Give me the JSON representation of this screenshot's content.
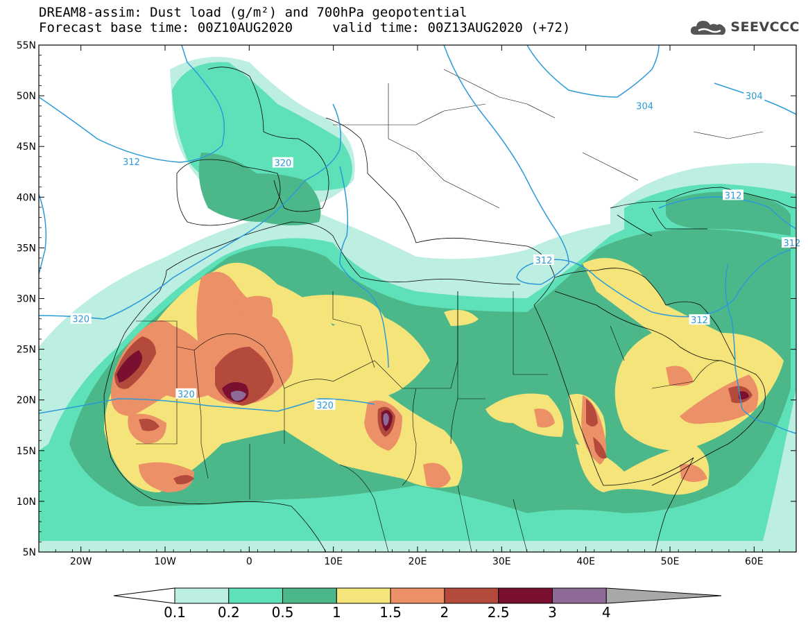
{
  "title": {
    "line1": "DREAM8-assim: Dust load (g/m²) and 700hPa geopotential",
    "line2": "Forecast base time: 00Z10AUG2020     valid time: 00Z13AUG2020 (+72)"
  },
  "logo": {
    "text": "SEEVCCC",
    "icon": "cloud-logo-icon"
  },
  "axes": {
    "lat_labels": [
      "55N",
      "50N",
      "45N",
      "40N",
      "35N",
      "30N",
      "25N",
      "20N",
      "15N",
      "10N",
      "5N"
    ],
    "lat_values": [
      55,
      50,
      45,
      40,
      35,
      30,
      25,
      20,
      15,
      10,
      5
    ],
    "lon_labels": [
      "20W",
      "10W",
      "0",
      "10E",
      "20E",
      "30E",
      "40E",
      "50E",
      "60E"
    ],
    "lon_values": [
      -20,
      -10,
      0,
      10,
      20,
      30,
      40,
      50,
      60
    ],
    "lon_range": [
      -25,
      65
    ],
    "lat_range": [
      5,
      55
    ]
  },
  "contour_labels": [
    {
      "text": "304",
      "lon": 47,
      "lat": 49
    },
    {
      "text": "304",
      "lon": 60,
      "lat": 50
    },
    {
      "text": "312",
      "lon": -14,
      "lat": 43.5
    },
    {
      "text": "312",
      "lon": 57.5,
      "lat": 40.2
    },
    {
      "text": "312",
      "lon": 64.5,
      "lat": 35.5
    },
    {
      "text": "312",
      "lon": 35,
      "lat": 33.8
    },
    {
      "text": "312",
      "lon": 53.5,
      "lat": 27.9
    },
    {
      "text": "320",
      "lon": 4,
      "lat": 43.4
    },
    {
      "text": "320",
      "lon": -20,
      "lat": 28
    },
    {
      "text": "320",
      "lon": -7.5,
      "lat": 20.6
    },
    {
      "text": "320",
      "lon": 9,
      "lat": 19.5
    }
  ],
  "colorbar": {
    "labels": [
      "0.1",
      "0.2",
      "0.5",
      "1",
      "1.5",
      "2",
      "2.5",
      "3",
      "4"
    ],
    "colors": [
      "#bdeee2",
      "#5ee0b8",
      "#4cb88a",
      "#f4e47a",
      "#ec9068",
      "#b44a3c",
      "#7a1030",
      "#8e6a98",
      "#a8a8a8"
    ],
    "units": "g/m²"
  },
  "legend_colors": {
    "level_0_1": "#bdeee2",
    "level_0_2": "#5ee0b8",
    "level_0_5": "#4cb88a",
    "level_1": "#f4e47a",
    "level_1_5": "#ec9068",
    "level_2": "#b44a3c",
    "level_2_5": "#7a1030",
    "level_3": "#8e6a98",
    "contour_line": "#2a9ad8"
  }
}
